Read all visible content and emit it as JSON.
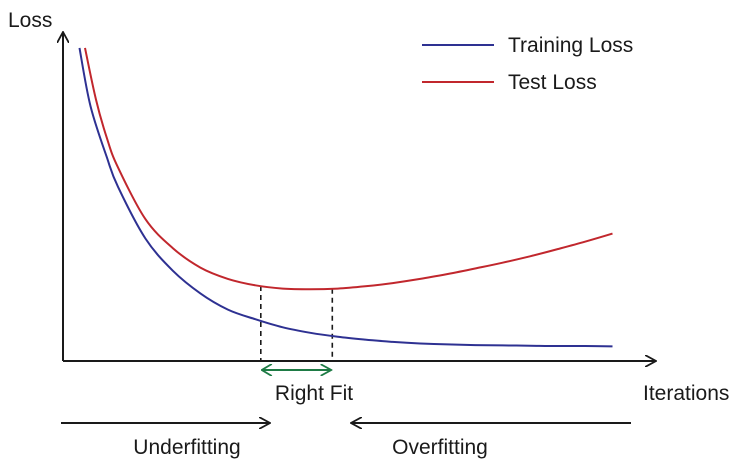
{
  "chart_data": {
    "type": "line",
    "title": "",
    "xlabel": "Iterations",
    "ylabel": "Loss",
    "grid": false,
    "legend": "top-right",
    "colors": {
      "training": "#2e3192",
      "test": "#c1272d",
      "right_fit": "#1e7b45",
      "axis": "#1a1a1a"
    },
    "series": [
      {
        "name": "Training Loss",
        "x": [
          0.3,
          0.5,
          0.8,
          1.0,
          1.5,
          2.0,
          2.5,
          3.0,
          3.5,
          4.0,
          4.5,
          5.0,
          5.5,
          6.0,
          6.5,
          7.0,
          7.5,
          8.0,
          8.5,
          9.0,
          9.5,
          10.0
        ],
        "values": [
          0.96,
          0.78,
          0.62,
          0.53,
          0.37,
          0.27,
          0.2,
          0.15,
          0.12,
          0.095,
          0.078,
          0.066,
          0.057,
          0.05,
          0.045,
          0.042,
          0.04,
          0.039,
          0.038,
          0.037,
          0.037,
          0.036
        ]
      },
      {
        "name": "Test Loss",
        "x": [
          0.4,
          0.6,
          0.8,
          1.0,
          1.5,
          2.0,
          2.5,
          3.0,
          3.5,
          4.0,
          4.5,
          5.0,
          5.5,
          6.0,
          6.5,
          7.0,
          7.5,
          8.0,
          8.5,
          9.0,
          9.5,
          10.0
        ],
        "values": [
          0.96,
          0.8,
          0.68,
          0.59,
          0.43,
          0.34,
          0.28,
          0.245,
          0.225,
          0.215,
          0.213,
          0.215,
          0.222,
          0.232,
          0.245,
          0.26,
          0.277,
          0.295,
          0.315,
          0.337,
          0.36,
          0.385
        ]
      }
    ],
    "xlim": [
      0,
      10.5
    ],
    "ylim": [
      0,
      1.0
    ],
    "annotations": {
      "right_fit": {
        "label": "Right Fit",
        "x_start": 3.6,
        "x_end": 4.9
      },
      "underfitting": {
        "label": "Underfitting",
        "direction": "right"
      },
      "overfitting": {
        "label": "Overfitting",
        "direction": "left"
      }
    }
  }
}
